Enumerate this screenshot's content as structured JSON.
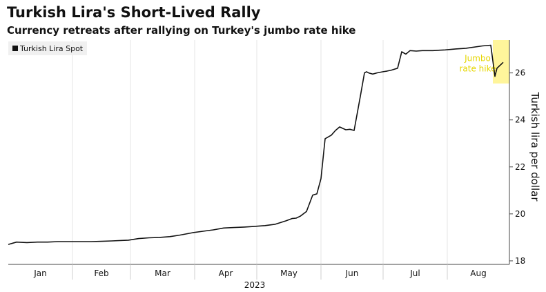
{
  "chart_data": {
    "type": "line",
    "title": "Turkish Lira's Short-Lived Rally",
    "subtitle": "Currency retreats after rallying on Turkey's jumbo rate hike",
    "ylabel": "Turkish lira per dollar",
    "ylim": [
      17.85,
      27.4
    ],
    "yticks": [
      18,
      20,
      22,
      24,
      26
    ],
    "xlabel": "2023",
    "x_tick_labels": [
      "Jan",
      "Feb",
      "Mar",
      "Apr",
      "May",
      "Jun",
      "Jul",
      "Aug"
    ],
    "legend_position": "top-left",
    "grid": "vertical",
    "series": [
      {
        "name": "Turkish Lira Spot",
        "color": "#111111",
        "x": [
          "2023-01-01",
          "2023-01-05",
          "2023-01-10",
          "2023-01-15",
          "2023-01-20",
          "2023-01-25",
          "2023-01-31",
          "2023-02-05",
          "2023-02-10",
          "2023-02-15",
          "2023-02-20",
          "2023-02-25",
          "2023-02-28",
          "2023-03-05",
          "2023-03-10",
          "2023-03-15",
          "2023-03-20",
          "2023-03-25",
          "2023-03-31",
          "2023-04-05",
          "2023-04-10",
          "2023-04-15",
          "2023-04-20",
          "2023-04-25",
          "2023-04-30",
          "2023-05-05",
          "2023-05-10",
          "2023-05-15",
          "2023-05-18",
          "2023-05-20",
          "2023-05-22",
          "2023-05-25",
          "2023-05-28",
          "2023-05-30",
          "2023-06-01",
          "2023-06-03",
          "2023-06-06",
          "2023-06-08",
          "2023-06-10",
          "2023-06-13",
          "2023-06-15",
          "2023-06-17",
          "2023-06-20",
          "2023-06-22",
          "2023-06-23",
          "2023-06-24",
          "2023-06-26",
          "2023-06-28",
          "2023-07-01",
          "2023-07-03",
          "2023-07-05",
          "2023-07-08",
          "2023-07-10",
          "2023-07-12",
          "2023-07-14",
          "2023-07-17",
          "2023-07-20",
          "2023-07-25",
          "2023-07-31",
          "2023-08-05",
          "2023-08-10",
          "2023-08-18",
          "2023-08-22",
          "2023-08-24",
          "2023-08-25",
          "2023-08-28"
        ],
        "values": [
          18.7,
          18.8,
          18.78,
          18.8,
          18.8,
          18.82,
          18.82,
          18.82,
          18.82,
          18.83,
          18.85,
          18.87,
          18.88,
          18.95,
          18.98,
          19.0,
          19.03,
          19.1,
          19.2,
          19.26,
          19.32,
          19.4,
          19.42,
          19.44,
          19.47,
          19.5,
          19.56,
          19.7,
          19.8,
          19.82,
          19.9,
          20.1,
          20.8,
          20.85,
          21.5,
          23.2,
          23.35,
          23.55,
          23.7,
          23.58,
          23.6,
          23.55,
          25.0,
          26.0,
          26.05,
          26.0,
          25.95,
          26.0,
          26.05,
          26.08,
          26.12,
          26.2,
          26.9,
          26.8,
          26.95,
          26.93,
          26.95,
          26.95,
          26.98,
          27.02,
          27.05,
          27.15,
          27.18,
          25.85,
          26.2,
          26.45
        ]
      }
    ],
    "annotations": [
      {
        "label_lines": [
          "Jumbo",
          "rate hike"
        ],
        "x_range": [
          "2023-08-23",
          "2023-08-31"
        ],
        "y_range": [
          25.55,
          27.4
        ],
        "color": "#fff38a"
      }
    ]
  }
}
